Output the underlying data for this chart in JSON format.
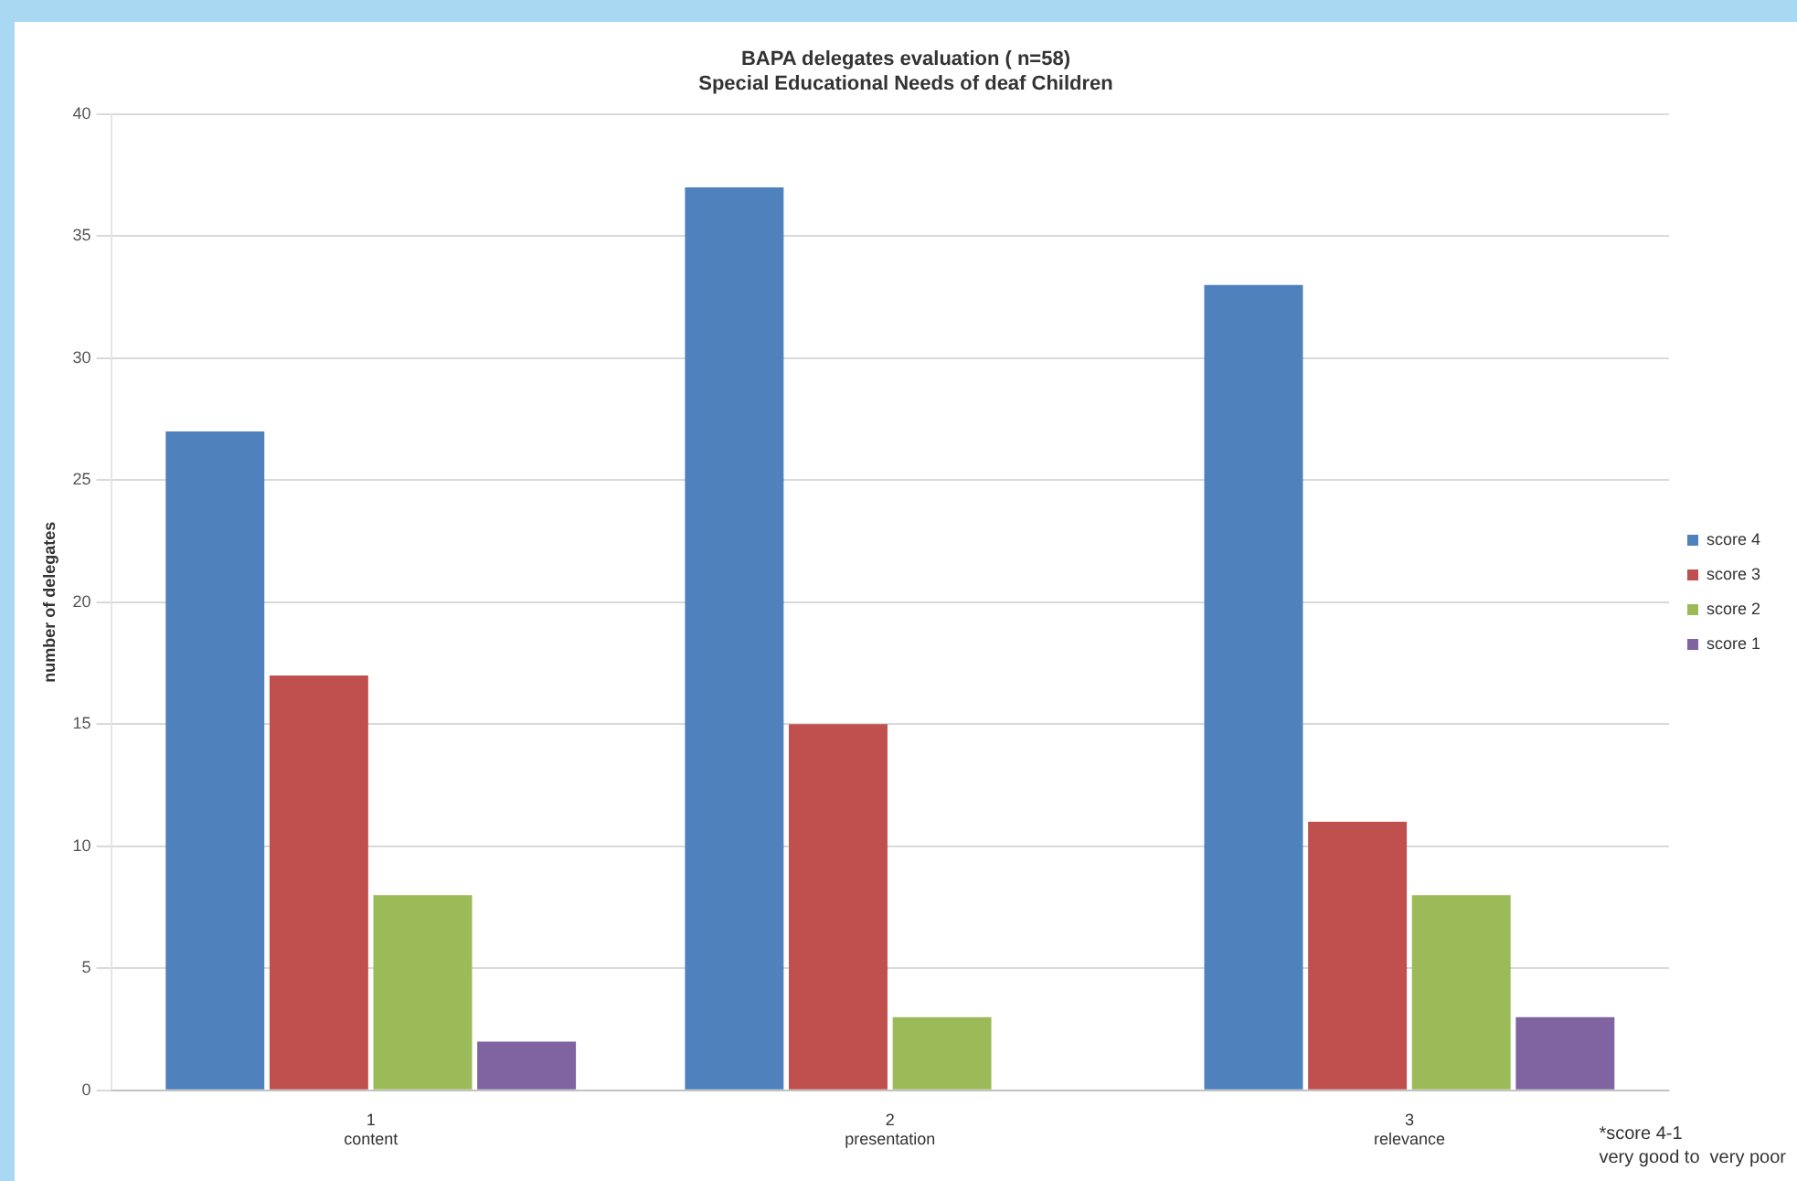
{
  "chart_data": {
    "type": "bar",
    "title": "BAPA delegates evaluation ( n=58)",
    "subtitle": "Special Educational Needs of deaf Children",
    "ylabel": "number of delegates",
    "categories": [
      "1\ncontent",
      "2\npresentation",
      "3\nrelevance"
    ],
    "series": [
      {
        "name": "score 4",
        "color": "#4f81bd",
        "values": [
          27,
          37,
          33
        ]
      },
      {
        "name": "score 3",
        "color": "#c0504d",
        "values": [
          17,
          15,
          11
        ]
      },
      {
        "name": "score 2",
        "color": "#9bbb59",
        "values": [
          8,
          3,
          8
        ]
      },
      {
        "name": "score 1",
        "color": "#8064a2",
        "values": [
          2,
          0,
          3
        ]
      }
    ],
    "ylim": [
      0,
      40
    ],
    "yticks": [
      0,
      5,
      10,
      15,
      20,
      25,
      30,
      35,
      40
    ],
    "grid": "y",
    "legend": "right",
    "annotations": [
      "*score 4-1\nvery good to  very poor"
    ]
  }
}
